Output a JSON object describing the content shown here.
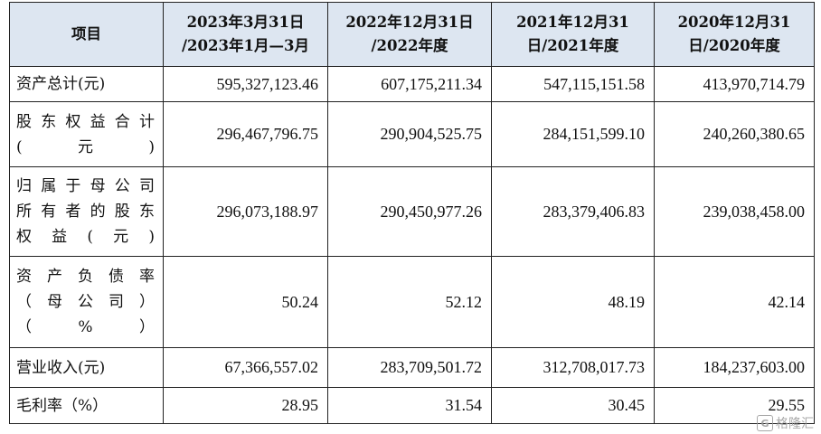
{
  "table": {
    "headers": [
      "项目",
      "2023年3月31日\n/2023年1月—3月",
      "2022年12月31日\n/2022年度",
      "2021年12月31\n日/2021年度",
      "2020年12月31\n日/2020年度"
    ],
    "rows": [
      {
        "label": "资产总计(元)",
        "values": [
          "595,327,123.46",
          "607,175,211.34",
          "547,115,151.58",
          "413,970,714.79"
        ]
      },
      {
        "label": "股东权益合计\n(元)",
        "values": [
          "296,467,796.75",
          "290,904,525.75",
          "284,151,599.10",
          "240,260,380.65"
        ]
      },
      {
        "label": "归属于母公司\n所有者的股东\n权益(元)",
        "values": [
          "296,073,188.97",
          "290,450,977.26",
          "283,379,406.83",
          "239,038,458.00"
        ]
      },
      {
        "label": "资产负债率\n（母公司）\n（%）",
        "values": [
          "50.24",
          "52.12",
          "48.19",
          "42.14"
        ]
      },
      {
        "label": "营业收入(元)",
        "values": [
          "67,366,557.02",
          "283,709,501.72",
          "312,708,017.73",
          "184,237,603.00"
        ]
      },
      {
        "label": "毛利率（%）",
        "values": [
          "28.95",
          "31.54",
          "30.45",
          "29.55"
        ]
      }
    ]
  },
  "watermark": {
    "logo": "G",
    "text": "格隆汇"
  }
}
